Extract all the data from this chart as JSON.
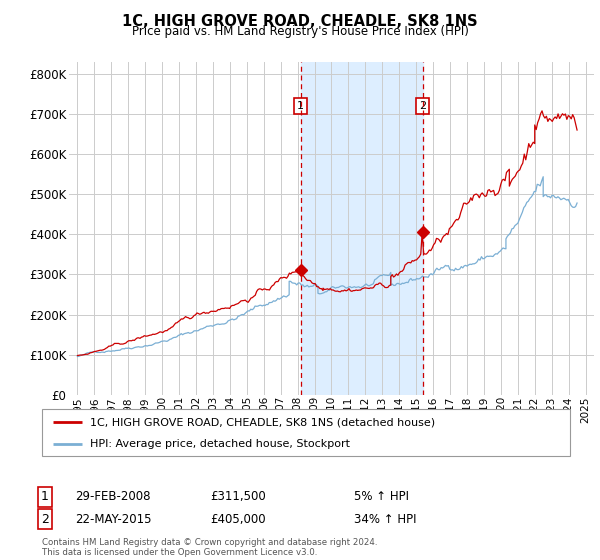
{
  "title": "1C, HIGH GROVE ROAD, CHEADLE, SK8 1NS",
  "subtitle": "Price paid vs. HM Land Registry's House Price Index (HPI)",
  "property_label": "1C, HIGH GROVE ROAD, CHEADLE, SK8 1NS (detached house)",
  "hpi_label": "HPI: Average price, detached house, Stockport",
  "footnote": "Contains HM Land Registry data © Crown copyright and database right 2024.\nThis data is licensed under the Open Government Licence v3.0.",
  "sale1_date": "29-FEB-2008",
  "sale1_price": "£311,500",
  "sale1_hpi": "5% ↑ HPI",
  "sale2_date": "22-MAY-2015",
  "sale2_price": "£405,000",
  "sale2_hpi": "34% ↑ HPI",
  "sale1_year": 2008.17,
  "sale2_year": 2015.39,
  "sale1_value": 311500,
  "sale2_value": 405000,
  "property_color": "#cc0000",
  "hpi_color": "#7bafd4",
  "highlight_color": "#ddeeff",
  "vline_color": "#cc0000",
  "ylim": [
    0,
    830000
  ],
  "xlim_start": 1994.5,
  "xlim_end": 2025.5,
  "yticks": [
    0,
    100000,
    200000,
    300000,
    400000,
    500000,
    600000,
    700000,
    800000
  ],
  "ytick_labels": [
    "£0",
    "£100K",
    "£200K",
    "£300K",
    "£400K",
    "£500K",
    "£600K",
    "£700K",
    "£800K"
  ],
  "xticks": [
    1995,
    1996,
    1997,
    1998,
    1999,
    2000,
    2001,
    2002,
    2003,
    2004,
    2005,
    2006,
    2007,
    2008,
    2009,
    2010,
    2011,
    2012,
    2013,
    2014,
    2015,
    2016,
    2017,
    2018,
    2019,
    2020,
    2021,
    2022,
    2023,
    2024,
    2025
  ],
  "background_color": "#ffffff",
  "grid_color": "#cccccc"
}
